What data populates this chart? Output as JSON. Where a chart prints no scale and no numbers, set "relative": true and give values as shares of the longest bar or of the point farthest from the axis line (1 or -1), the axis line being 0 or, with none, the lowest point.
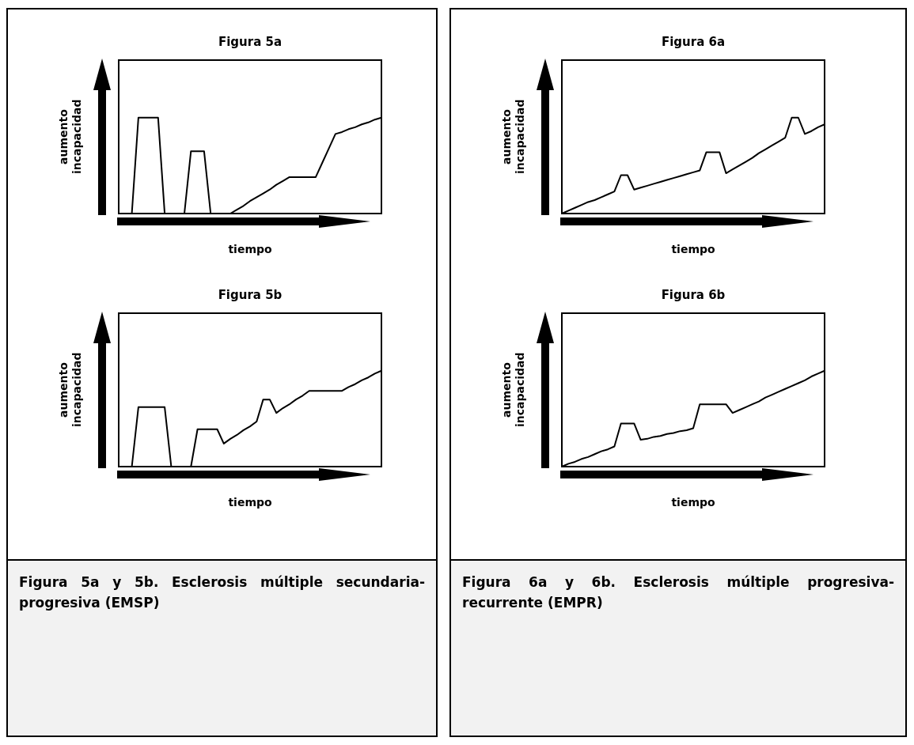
{
  "chart_data": [
    {
      "type": "line",
      "title": "Figura 5a",
      "xlabel": "tiempo",
      "ylabel": "aumento incapacidad",
      "relative": true,
      "categories": [
        null,
        null,
        null,
        null,
        null,
        null,
        null,
        null,
        null,
        null,
        null,
        null,
        null,
        null,
        null,
        null,
        null,
        null,
        null,
        null,
        null,
        null,
        null,
        null,
        null,
        null,
        null,
        null,
        null,
        null,
        null,
        null,
        null,
        null,
        null,
        null,
        null,
        null,
        null,
        null,
        null
      ],
      "series": [
        {
          "color": "#000000",
          "values": [
            0,
            0,
            0,
            1,
            1,
            1,
            1,
            0,
            0,
            0,
            0,
            0.65,
            0.65,
            0.65,
            0,
            0,
            0,
            0,
            0.04,
            0.08,
            0.13,
            0.17,
            0.21,
            0.25,
            0.3,
            0.34,
            0.38,
            0.38,
            0.38,
            0.38,
            0.38,
            0.53,
            0.68,
            0.83,
            0.85,
            0.88,
            0.9,
            0.93,
            0.95,
            0.98,
            1
          ]
        }
      ]
    },
    {
      "type": "line",
      "title": "Figura 5b",
      "xlabel": "tiempo",
      "ylabel": "aumento incapacidad",
      "relative": true,
      "categories": [
        null,
        null,
        null,
        null,
        null,
        null,
        null,
        null,
        null,
        null,
        null,
        null,
        null,
        null,
        null,
        null,
        null,
        null,
        null,
        null,
        null,
        null,
        null,
        null,
        null,
        null,
        null,
        null,
        null,
        null,
        null,
        null,
        null,
        null,
        null,
        null,
        null,
        null,
        null,
        null,
        null
      ],
      "series": [
        {
          "color": "#000000",
          "values": [
            0,
            0,
            0,
            0.62,
            0.62,
            0.62,
            0.62,
            0.62,
            0,
            0,
            0,
            0,
            0.39,
            0.39,
            0.39,
            0.39,
            0.24,
            0.29,
            0.33,
            0.38,
            0.42,
            0.47,
            0.7,
            0.7,
            0.56,
            0.61,
            0.65,
            0.7,
            0.74,
            0.79,
            0.79,
            0.79,
            0.79,
            0.79,
            0.79,
            0.83,
            0.86,
            0.9,
            0.93,
            0.97,
            1
          ]
        }
      ],
      "annotations": [
        "Figura 5a y 5b. Esclerosis múltiple secundaria-progresiva (EMSP)"
      ]
    },
    {
      "type": "line",
      "title": "Figura 6a",
      "xlabel": "tiempo",
      "ylabel": "aumento incapacidad",
      "relative": true,
      "categories": [
        null,
        null,
        null,
        null,
        null,
        null,
        null,
        null,
        null,
        null,
        null,
        null,
        null,
        null,
        null,
        null,
        null,
        null,
        null,
        null,
        null,
        null,
        null,
        null,
        null,
        null,
        null,
        null,
        null,
        null,
        null,
        null,
        null,
        null,
        null,
        null,
        null,
        null,
        null,
        null,
        null
      ],
      "series": [
        {
          "color": "#000000",
          "values": [
            0,
            0.03,
            0.06,
            0.09,
            0.12,
            0.14,
            0.17,
            0.2,
            0.23,
            0.4,
            0.4,
            0.25,
            0.27,
            0.29,
            0.31,
            0.33,
            0.35,
            0.37,
            0.39,
            0.41,
            0.43,
            0.45,
            0.64,
            0.64,
            0.64,
            0.42,
            0.46,
            0.5,
            0.54,
            0.58,
            0.63,
            0.67,
            0.71,
            0.75,
            0.79,
            1,
            1,
            0.83,
            0.86,
            0.9,
            0.93
          ]
        }
      ]
    },
    {
      "type": "line",
      "title": "Figura 6b",
      "xlabel": "tiempo",
      "ylabel": "aumento incapacidad",
      "relative": true,
      "categories": [
        null,
        null,
        null,
        null,
        null,
        null,
        null,
        null,
        null,
        null,
        null,
        null,
        null,
        null,
        null,
        null,
        null,
        null,
        null,
        null,
        null,
        null,
        null,
        null,
        null,
        null,
        null,
        null,
        null,
        null,
        null,
        null,
        null,
        null,
        null,
        null,
        null,
        null,
        null,
        null,
        null
      ],
      "series": [
        {
          "color": "#000000",
          "values": [
            0,
            0.03,
            0.05,
            0.08,
            0.1,
            0.13,
            0.16,
            0.18,
            0.21,
            0.45,
            0.45,
            0.45,
            0.28,
            0.29,
            0.31,
            0.32,
            0.34,
            0.35,
            0.37,
            0.38,
            0.4,
            0.65,
            0.65,
            0.65,
            0.65,
            0.65,
            0.56,
            0.59,
            0.62,
            0.65,
            0.68,
            0.72,
            0.75,
            0.78,
            0.81,
            0.84,
            0.87,
            0.9,
            0.94,
            0.97,
            1
          ]
        }
      ],
      "annotations": [
        "Figura 6a y 6b. Esclerosis múltiple progresiva-recurrente (EMPR)"
      ]
    }
  ]
}
